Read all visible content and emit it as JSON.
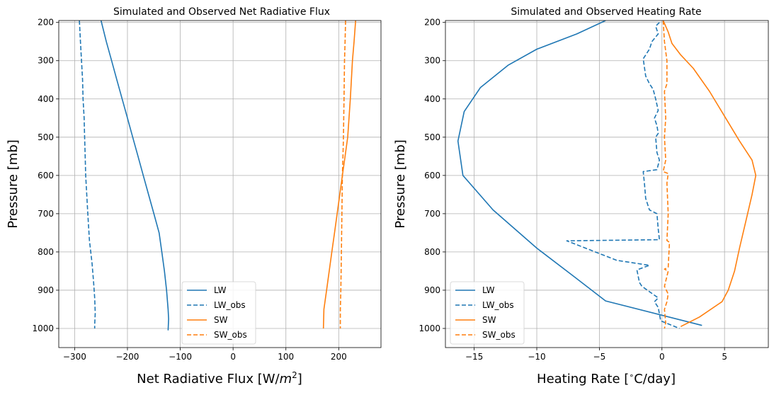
{
  "chart_data": [
    {
      "type": "line",
      "title": "Simulated and Observed Net Radiative Flux",
      "xlabel_parts": [
        "Net Radiative Flux [W/",
        "m",
        "2",
        "]"
      ],
      "ylabel": "Pressure [mb]",
      "xlim": [
        -330,
        280
      ],
      "ylim": [
        1050,
        195
      ],
      "xticks": [
        -300,
        -200,
        -100,
        0,
        100,
        200
      ],
      "xtick_labels": [
        "−300",
        "−200",
        "−100",
        "0",
        "100",
        "200"
      ],
      "yticks": [
        200,
        300,
        400,
        500,
        600,
        700,
        800,
        900,
        1000
      ],
      "ytick_labels": [
        "200",
        "300",
        "400",
        "500",
        "600",
        "700",
        "800",
        "900",
        "1000"
      ],
      "grid": true,
      "legend_placement": "lower-center",
      "series": [
        {
          "name": "LW",
          "color": "#1f77b4",
          "dashed": false,
          "x": [
            -280,
            -250,
            -240,
            -230,
            -220,
            -210,
            -200,
            -190,
            -180,
            -170,
            -160,
            -150,
            -140,
            -135,
            -130,
            -126,
            -123,
            -122,
            -123
          ],
          "y": [
            150,
            195,
            250,
            300,
            350,
            400,
            450,
            500,
            550,
            600,
            650,
            700,
            750,
            800,
            850,
            900,
            950,
            975,
            1005
          ]
        },
        {
          "name": "LW_obs",
          "color": "#1f77b4",
          "dashed": true,
          "x": [
            -291,
            -289,
            -287,
            -285,
            -284,
            -282,
            -281,
            -280,
            -279,
            -277,
            -275,
            -272,
            -267,
            -264,
            -262,
            -261,
            -262,
            -262
          ],
          "y": [
            195,
            250,
            300,
            350,
            400,
            450,
            500,
            550,
            600,
            650,
            700,
            770,
            830,
            880,
            920,
            960,
            990,
            1000
          ]
        },
        {
          "name": "SW",
          "color": "#ff7f0e",
          "dashed": false,
          "x": [
            232,
            229,
            226,
            222,
            217,
            212,
            207,
            202,
            197,
            192,
            187,
            182,
            177,
            172,
            171
          ],
          "y": [
            195,
            250,
            300,
            400,
            500,
            550,
            600,
            650,
            700,
            750,
            800,
            850,
            900,
            950,
            1000
          ]
        },
        {
          "name": "SW_obs",
          "color": "#ff7f0e",
          "dashed": true,
          "x": [
            213,
            212,
            211,
            210,
            209,
            208,
            207,
            206,
            205,
            204,
            203,
            203
          ],
          "y": [
            195,
            250,
            300,
            400,
            500,
            550,
            600,
            700,
            800,
            900,
            950,
            1000
          ]
        }
      ]
    },
    {
      "type": "line",
      "title": "Simulated and Observed Heating Rate",
      "xlabel_parts": [
        "Heating Rate [",
        "∘",
        "C/day]"
      ],
      "ylabel": "Pressure [mb]",
      "xlim": [
        -17.3,
        8.5
      ],
      "ylim": [
        1050,
        195
      ],
      "xticks": [
        -15,
        -10,
        -5,
        0,
        5
      ],
      "xtick_labels": [
        "−15",
        "−10",
        "−5",
        "0",
        "5"
      ],
      "yticks": [
        200,
        300,
        400,
        500,
        600,
        700,
        800,
        900,
        1000
      ],
      "ytick_labels": [
        "200",
        "300",
        "400",
        "500",
        "600",
        "700",
        "800",
        "900",
        "1000"
      ],
      "grid": true,
      "legend_placement": "lower-left",
      "series": [
        {
          "name": "LW",
          "color": "#1f77b4",
          "dashed": false,
          "x": [
            -4.5,
            -6.8,
            -10.0,
            -12.3,
            -14.5,
            -15.8,
            -16.3,
            -15.9,
            -13.5,
            -10.0,
            -7.0,
            -4.5,
            3.2
          ],
          "y": [
            195,
            230,
            270,
            312,
            370,
            433,
            510,
            600,
            690,
            790,
            865,
            928,
            992
          ]
        },
        {
          "name": "LW_obs",
          "color": "#1f77b4",
          "dashed": true,
          "x": [
            -0.2,
            -0.5,
            -0.3,
            -0.8,
            -1.0,
            -1.5,
            -1.3,
            -1.0,
            -0.7,
            -0.5,
            -0.3,
            -0.6,
            -0.4,
            -0.3,
            -0.5,
            -0.4,
            -0.2,
            -0.4,
            -1.5,
            -1.4,
            -1.3,
            -1.0,
            -0.4,
            -0.3,
            -0.2,
            -7.6,
            -3.6,
            -1.0,
            -2.0,
            -1.8,
            -1.6,
            -0.3,
            -0.6,
            -0.3,
            -0.1,
            1.4
          ],
          "y": [
            200,
            210,
            230,
            250,
            270,
            295,
            340,
            360,
            375,
            400,
            430,
            450,
            470,
            490,
            500,
            540,
            560,
            585,
            590,
            620,
            660,
            690,
            700,
            740,
            768,
            771,
            822,
            835,
            847,
            880,
            890,
            920,
            930,
            945,
            980,
            1000
          ]
        },
        {
          "name": "SW",
          "color": "#ff7f0e",
          "dashed": false,
          "x": [
            0.1,
            0.5,
            0.8,
            1.5,
            2.5,
            3.8,
            5.0,
            6.2,
            7.2,
            7.5,
            7.2,
            6.7,
            6.2,
            5.8,
            5.3,
            4.8,
            3.0,
            1.5
          ],
          "y": [
            195,
            225,
            255,
            285,
            320,
            380,
            445,
            510,
            560,
            600,
            650,
            720,
            790,
            850,
            900,
            930,
            970,
            995
          ]
        },
        {
          "name": "SW_obs",
          "color": "#ff7f0e",
          "dashed": true,
          "x": [
            0.1,
            0.2,
            0.4,
            0.4,
            0.2,
            0.3,
            0.2,
            0.3,
            0.1,
            0.5,
            0.4,
            0.5,
            0.4,
            0.6,
            0.5,
            0.2,
            0.5,
            0.2,
            0.5,
            0.4,
            0.2,
            0.3,
            0.2
          ],
          "y": [
            195,
            250,
            300,
            360,
            380,
            450,
            500,
            560,
            590,
            595,
            620,
            700,
            770,
            775,
            840,
            845,
            850,
            890,
            910,
            930,
            950,
            985,
            1000
          ]
        }
      ]
    }
  ]
}
